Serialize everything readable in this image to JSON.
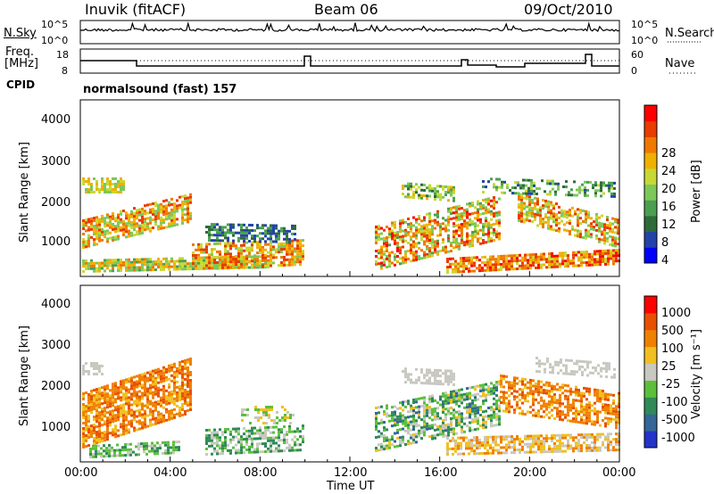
{
  "header": {
    "station": "Inuvik (fitACF)",
    "beam": "Beam 06",
    "date": "09/Oct/2010"
  },
  "noise_panel": {
    "left_label": "N.Sky",
    "left_ticks": [
      "10^5",
      "10^0"
    ],
    "right_label": "N.Search",
    "right_ticks": [
      "10^5",
      "10^0"
    ]
  },
  "freq_panel": {
    "left_label_line1": "Freq.",
    "left_label_line2": "[MHz]",
    "left_ticks": [
      "18",
      "8"
    ],
    "right_label": "Nave",
    "right_ticks": [
      "60",
      "0"
    ]
  },
  "cpid": {
    "label": "CPID",
    "value": "normalsound (fast) 157"
  },
  "chart_data": [
    {
      "type": "heatmap",
      "name": "power",
      "ylabel": "Slant Range [km]",
      "y_ticks": [
        "4000",
        "3000",
        "2000",
        "1000"
      ],
      "ylim": [
        200,
        4500
      ],
      "xlim_hours": [
        0,
        24
      ],
      "colorbar": {
        "label": "Power [dB]",
        "ticks": [
          "28",
          "24",
          "20",
          "16",
          "12",
          "8",
          "4"
        ],
        "colors": [
          "#0000ff",
          "#2244aa",
          "#2e6b3a",
          "#4aa050",
          "#7cc85a",
          "#c8d832",
          "#f0b000",
          "#f07800",
          "#e83c00",
          "#ff0000"
        ]
      }
    },
    {
      "type": "heatmap",
      "name": "velocity",
      "ylabel": "Slant Range [km]",
      "y_ticks": [
        "4000",
        "3000",
        "2000",
        "1000"
      ],
      "ylim": [
        200,
        4500
      ],
      "xlim_hours": [
        0,
        24
      ],
      "colorbar": {
        "label": "Velocity [m s⁻¹]",
        "ticks": [
          "1000",
          "500",
          "100",
          "25",
          "-25",
          "-100",
          "-500",
          "-1000"
        ],
        "colors": [
          "#2233cc",
          "#336699",
          "#2e8b57",
          "#5cbf3c",
          "#c8c8c0",
          "#f0c020",
          "#f08000",
          "#e85000",
          "#ff0000"
        ]
      }
    }
  ],
  "x_axis": {
    "ticks": [
      "00:00",
      "04:00",
      "08:00",
      "12:00",
      "16:00",
      "20:00",
      "00:00"
    ],
    "label": "Time UT"
  }
}
